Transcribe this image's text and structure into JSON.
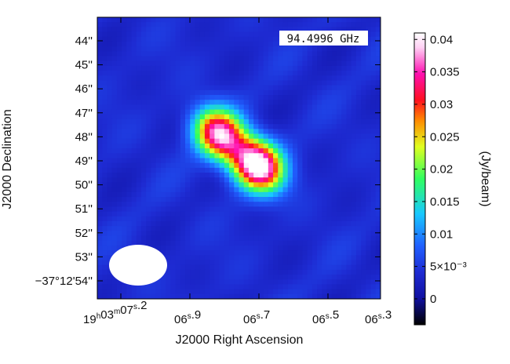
{
  "chart_data": {
    "type": "heatmap",
    "title": "94.4996 GHz",
    "xlabel": "J2000 Right Ascension",
    "ylabel": "J2000 Declination",
    "colorbar_label": "(Jy/beam)",
    "colormap": "cubehelix-like: black → blue → cyan → green → yellow → orange → red → magenta → white",
    "color_stops": [
      "#000000",
      "#1010a0",
      "#1e2bd2",
      "#2060ff",
      "#18c8ff",
      "#30ff60",
      "#e0ff20",
      "#ff8a00",
      "#ff1020",
      "#ff10b0",
      "#ffd0f4",
      "#ffffff"
    ],
    "x_ticks": [
      "19h03m07s.2",
      "06s.9",
      "06s.7",
      "06s.5",
      "06s.3"
    ],
    "x_ticks_display": [
      {
        "h": "19",
        "m": "03",
        "s": "07",
        "frac": ".2"
      },
      {
        "s": "06",
        "frac": ".9"
      },
      {
        "s": "06",
        "frac": ".7"
      },
      {
        "s": "06",
        "frac": ".5"
      },
      {
        "s": "06",
        "frac": ".3"
      }
    ],
    "y_ticks": [
      "44''",
      "45''",
      "46''",
      "47''",
      "48''",
      "49''",
      "50''",
      "51''",
      "52''",
      "53''",
      "−37°12'54''"
    ],
    "colorbar_ticks": [
      "0",
      "5×10⁻³",
      "0.01",
      "0.015",
      "0.02",
      "0.025",
      "0.03",
      "0.035",
      "0.04"
    ],
    "colorbar_range": [
      -0.004,
      0.041
    ],
    "sources": [
      {
        "name": "northern peak",
        "ra_offset_arcsec": -1.4,
        "dec_offset_arcsec": 1.5,
        "peak_jy_per_beam": 0.034
      },
      {
        "name": "southern peak",
        "ra_offset_arcsec": 1.4,
        "dec_offset_arcsec": -0.8,
        "peak_jy_per_beam": 0.041
      }
    ],
    "beam": {
      "major_arcsec": 2.5,
      "minor_arcsec": 1.6,
      "pa_deg": 90,
      "color": "#ffffff"
    },
    "background_level_jy_per_beam": 0.004
  }
}
